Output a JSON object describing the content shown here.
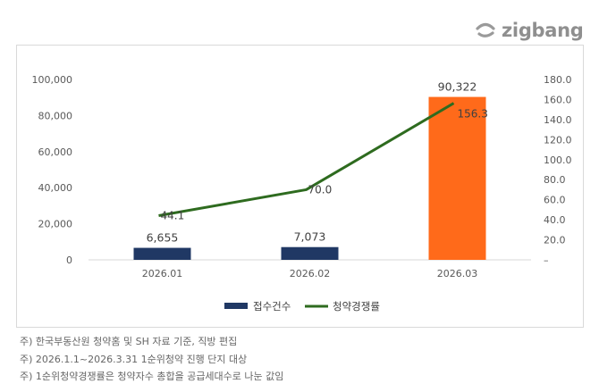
{
  "brand": {
    "logo_text": "zigbang",
    "accent": "#8f8f8f"
  },
  "chart_data": {
    "type": "bar",
    "categories": [
      "2026.01",
      "2026.02",
      "2026.03"
    ],
    "series": [
      {
        "name": "접수건수",
        "kind": "bar",
        "axis": "left",
        "values": [
          6655,
          7073,
          90322
        ],
        "labels": [
          "6,655",
          "7,073",
          "90,322"
        ],
        "colors": [
          "#203864",
          "#203864",
          "#ff6a1a"
        ]
      },
      {
        "name": "청약경쟁률",
        "kind": "line",
        "axis": "right",
        "values": [
          44.1,
          70.0,
          156.3
        ],
        "labels": [
          "44.1",
          "70.0",
          "156.3"
        ],
        "color": "#2e6b1f"
      }
    ],
    "y_left": {
      "min": 0,
      "max": 100000,
      "ticks": [
        "0",
        "20,000",
        "40,000",
        "60,000",
        "80,000",
        "100,000"
      ]
    },
    "y_right": {
      "min": 0,
      "max": 180,
      "ticks": [
        "–",
        "20.0",
        "40.0",
        "60.0",
        "80.0",
        "100.0",
        "120.0",
        "140.0",
        "160.0",
        "180.0"
      ]
    },
    "legend_position": "bottom",
    "grid": false
  },
  "notes": [
    "주) 한국부동산원 청약홈 및 SH 자료 기준, 직방 편집",
    "주) 2026.1.1~2026.3.31 1순위청약 진행 단지 대상",
    "주) 1순위청약경쟁률은 청약자수 총합을 공급세대수로 나눈 값임"
  ]
}
